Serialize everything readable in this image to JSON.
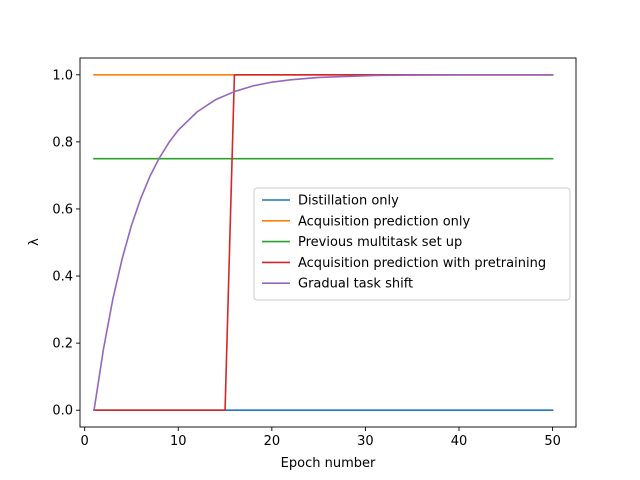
{
  "chart_data": {
    "type": "line",
    "title": "",
    "xlabel": "Epoch number",
    "ylabel": "λ",
    "xlim": [
      -0.5,
      52.5
    ],
    "ylim": [
      -0.05,
      1.05
    ],
    "xticks": [
      0,
      10,
      20,
      30,
      40,
      50
    ],
    "xtick_labels": [
      "0",
      "10",
      "20",
      "30",
      "40",
      "50"
    ],
    "yticks": [
      0.0,
      0.2,
      0.4,
      0.6,
      0.8,
      1.0
    ],
    "ytick_labels": [
      "0.0",
      "0.2",
      "0.4",
      "0.6",
      "0.8",
      "1.0"
    ],
    "grid": false,
    "legend_position": "center-right",
    "series": [
      {
        "name": "Distillation only",
        "color": "#1f77b4",
        "x": [
          1,
          50
        ],
        "y": [
          0,
          0
        ]
      },
      {
        "name": "Acquisition prediction only",
        "color": "#ff7f0e",
        "x": [
          1,
          50
        ],
        "y": [
          1,
          1
        ]
      },
      {
        "name": "Previous multitask set up",
        "color": "#2ca02c",
        "x": [
          1,
          50
        ],
        "y": [
          0.75,
          0.75
        ]
      },
      {
        "name": "Acquisition prediction with pretraining",
        "color": "#d62728",
        "x": [
          1,
          15,
          16,
          50
        ],
        "y": [
          0,
          0,
          1,
          1
        ]
      },
      {
        "name": "Gradual task shift",
        "color": "#9467bd",
        "x": [
          1,
          2,
          3,
          4,
          5,
          6,
          7,
          8,
          9,
          10,
          12,
          14,
          16,
          18,
          20,
          22,
          25,
          28,
          31,
          35,
          40,
          45,
          50
        ],
        "y": [
          0.0,
          0.181,
          0.33,
          0.451,
          0.551,
          0.632,
          0.699,
          0.753,
          0.798,
          0.835,
          0.889,
          0.926,
          0.95,
          0.967,
          0.978,
          0.985,
          0.992,
          0.995,
          0.998,
          0.999,
          1.0,
          1.0,
          1.0
        ]
      }
    ]
  }
}
